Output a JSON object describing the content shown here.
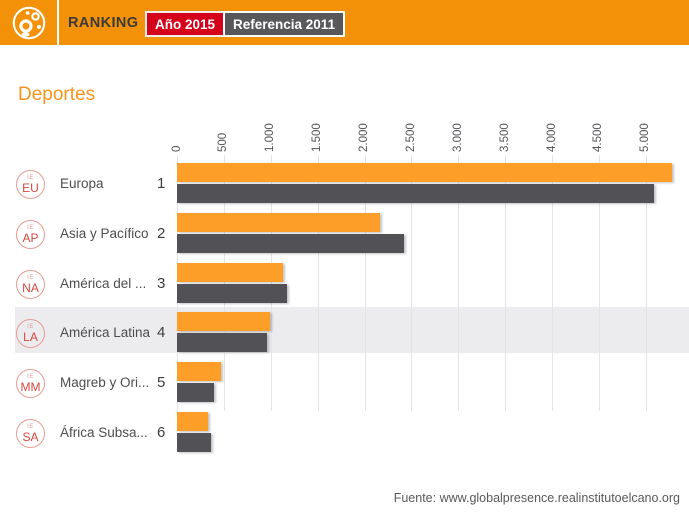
{
  "header": {
    "logo_name": "global-presence-globe-logo",
    "title": "RANKING",
    "badge_2015_label": "Año 2015",
    "badge_2011_label": "Referencia 2011",
    "colors": {
      "header_bg": "#F39208",
      "badge_2015_bg": "#D4021B",
      "badge_2011_bg": "#58585B"
    }
  },
  "page_title": "Deportes",
  "footer": {
    "source": "Fuente: www.globalpresence.realinstitutoelcano.org"
  },
  "chart_data": {
    "type": "bar",
    "orientation": "horizontal",
    "title": "Deportes",
    "legend_position": "top-header",
    "grid": true,
    "xlim": [
      0,
      5465
    ],
    "x_tick_labels": [
      "0",
      "500",
      "1.000",
      "1.500",
      "2.000",
      "2.500",
      "3.000",
      "3.500",
      "4.000",
      "4.500",
      "5.000"
    ],
    "x_tick_values": [
      0,
      500,
      1000,
      1500,
      2000,
      2500,
      3000,
      3500,
      4000,
      4500,
      5000
    ],
    "series": [
      {
        "name": "Año 2015",
        "color": "#FD9E28"
      },
      {
        "name": "Referencia 2011",
        "color": "#515156"
      }
    ],
    "categories": [
      "Europa",
      "Asia y Pacífico",
      "América del ...",
      "América Latina",
      "Magreb y Ori...",
      "África Subsa..."
    ],
    "rows": [
      {
        "code": "EU",
        "badge_mini": "IE",
        "label": "Europa",
        "rank": "1",
        "value_2015": 5275,
        "value_2011": 5090,
        "highlighted": false
      },
      {
        "code": "AP",
        "badge_mini": "IE",
        "label": "Asia y Pacífico",
        "rank": "2",
        "value_2015": 2165,
        "value_2011": 2420,
        "highlighted": false
      },
      {
        "code": "NA",
        "badge_mini": "IE",
        "label": "América del ...",
        "rank": "3",
        "value_2015": 1125,
        "value_2011": 1170,
        "highlighted": false
      },
      {
        "code": "LA",
        "badge_mini": "IE",
        "label": "América Latina",
        "rank": "4",
        "value_2015": 990,
        "value_2011": 960,
        "highlighted": true
      },
      {
        "code": "MM",
        "badge_mini": "IE",
        "label": "Magreb y Ori...",
        "rank": "5",
        "value_2015": 470,
        "value_2011": 390,
        "highlighted": false
      },
      {
        "code": "SA",
        "badge_mini": "IE",
        "label": "África Subsa...",
        "rank": "6",
        "value_2015": 330,
        "value_2011": 365,
        "highlighted": false
      }
    ],
    "highlight_color": "#ECECEE"
  }
}
